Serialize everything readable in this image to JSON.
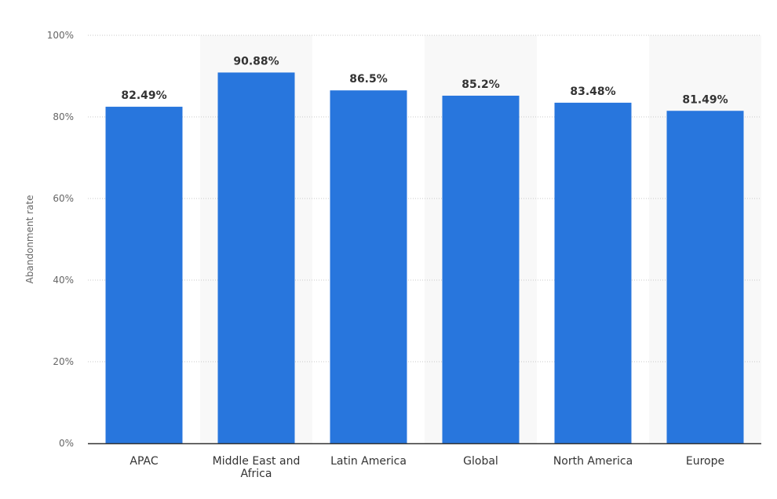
{
  "chart_data": {
    "type": "bar",
    "title": "",
    "xlabel": "",
    "ylabel": "Abandonment rate",
    "categories": [
      [
        "APAC"
      ],
      [
        "Middle East and",
        "Africa"
      ],
      [
        "Latin America"
      ],
      [
        "Global"
      ],
      [
        "North America"
      ],
      [
        "Europe"
      ]
    ],
    "values": [
      82.49,
      90.88,
      86.5,
      85.2,
      83.48,
      81.49
    ],
    "value_labels": [
      "82.49%",
      "90.88%",
      "86.5%",
      "85.2%",
      "83.48%",
      "81.49%"
    ],
    "ylim": [
      0,
      100
    ],
    "yticks": [
      0,
      20,
      40,
      60,
      80,
      100
    ],
    "ytick_labels": [
      "0%",
      "20%",
      "40%",
      "60%",
      "80%",
      "100%"
    ],
    "grid": true,
    "legend": "none",
    "colors": {
      "bar": "#2876dd",
      "band": "#f8f8f8",
      "grid": "#c8c8c8",
      "axis": "#333333",
      "text": "#333333",
      "muted_text": "#666666"
    }
  }
}
